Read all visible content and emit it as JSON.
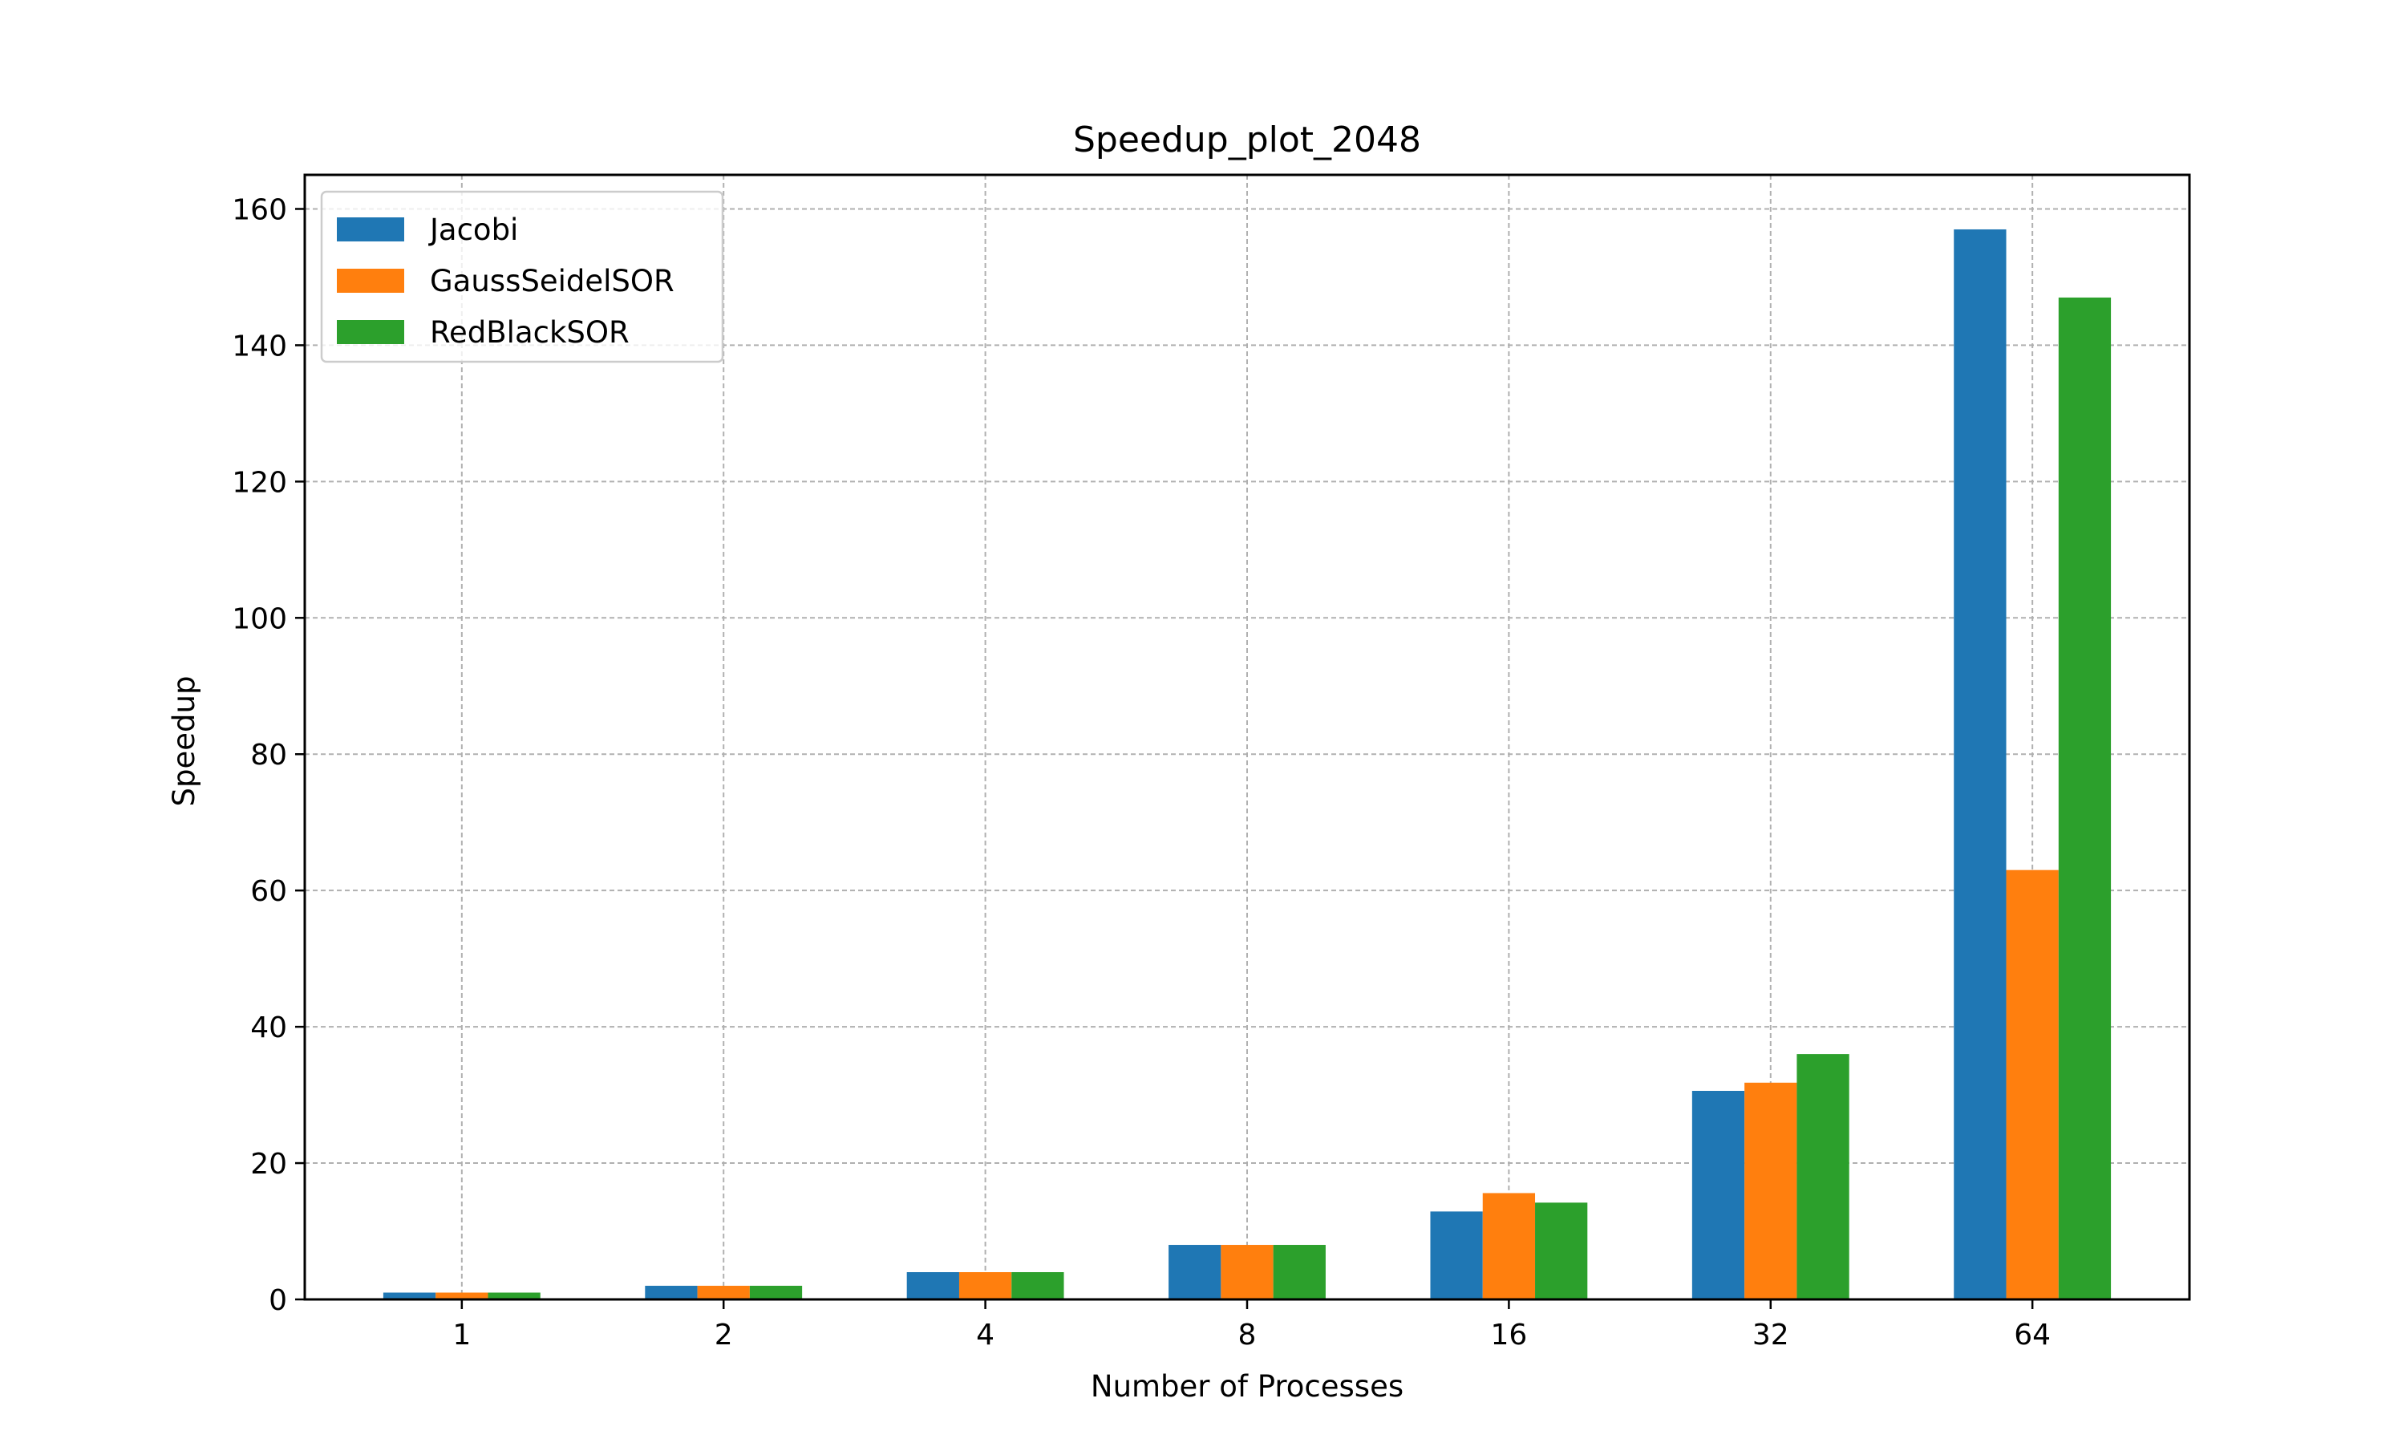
{
  "chart_data": {
    "type": "bar",
    "title": "Speedup_plot_2048",
    "xlabel": "Number of Processes",
    "ylabel": "Speedup",
    "categories": [
      "1",
      "2",
      "4",
      "8",
      "16",
      "32",
      "64"
    ],
    "series": [
      {
        "name": "Jacobi",
        "color": "#1f77b4",
        "values": [
          1.0,
          2.0,
          4.0,
          8.0,
          12.9,
          30.6,
          157.0
        ]
      },
      {
        "name": "GaussSeidelSOR",
        "color": "#ff7f0e",
        "values": [
          1.0,
          2.0,
          4.0,
          8.0,
          15.6,
          31.8,
          63.0
        ]
      },
      {
        "name": "RedBlackSOR",
        "color": "#2ca02c",
        "values": [
          1.0,
          2.0,
          4.0,
          8.0,
          14.2,
          36.0,
          147.0
        ]
      }
    ],
    "ylim": [
      0,
      165
    ],
    "yticks": [
      0,
      20,
      40,
      60,
      80,
      100,
      120,
      140,
      160
    ],
    "grid": true,
    "legend_position": "top-left"
  }
}
